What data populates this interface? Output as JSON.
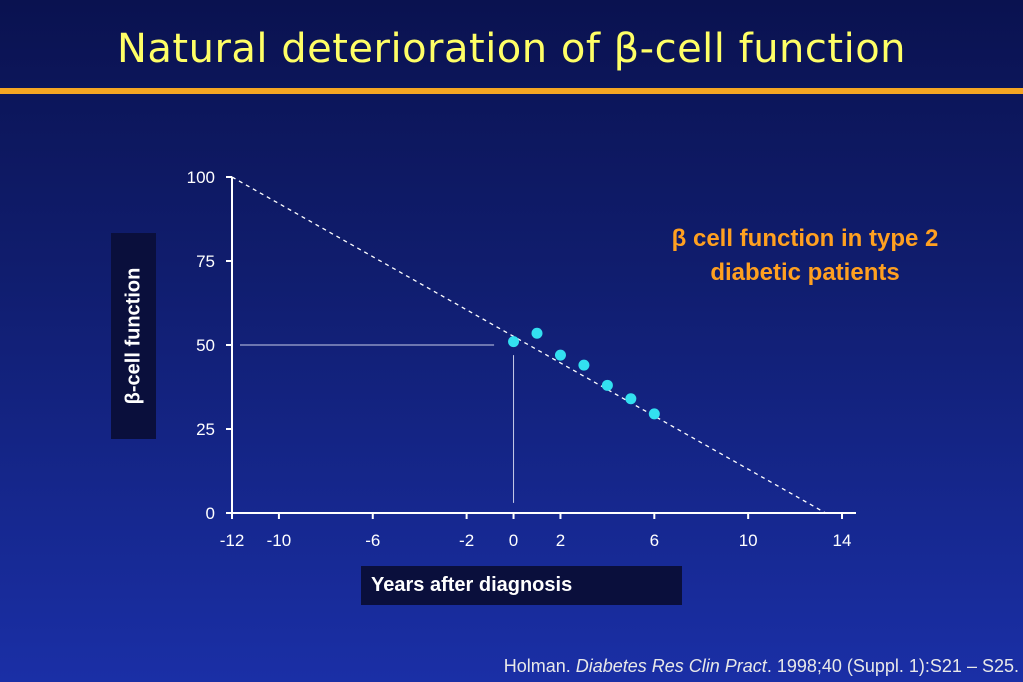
{
  "slide": {
    "title": "Natural deterioration of β-cell function",
    "annotation_line1": "β cell function in type 2",
    "annotation_line2": "diabetic patients",
    "citation_author": "Holman. ",
    "citation_journal": "Diabetes Res Clin Pract",
    "citation_rest": ". 1998;40 (Suppl. 1):S21 – S25."
  },
  "colors": {
    "title": "#ffff66",
    "rule": "#f5a623",
    "annotation": "#ffa020",
    "points": "#33e0f0",
    "axis": "#ffffff",
    "label_box": "#0a0f3c"
  },
  "chart_data": {
    "type": "scatter",
    "xlabel": "Years after diagnosis",
    "ylabel": "β-cell function",
    "xlim": [
      -12,
      14
    ],
    "ylim": [
      0,
      100
    ],
    "x_ticks": [
      -12,
      -10,
      -6,
      -2,
      0,
      2,
      6,
      10,
      14
    ],
    "y_ticks": [
      0,
      25,
      50,
      75,
      100
    ],
    "grid": false,
    "series": [
      {
        "x": [
          0,
          1,
          2,
          3,
          4,
          5,
          6
        ],
        "y": [
          51,
          53.5,
          47,
          44,
          38,
          34,
          29.5
        ]
      }
    ],
    "trend_line": {
      "x": [
        -12,
        13.3
      ],
      "y": [
        100,
        0
      ],
      "style": "dashed"
    },
    "reference_lines": [
      {
        "orientation": "horizontal",
        "y": 50,
        "x_from": -12,
        "x_to": -1
      },
      {
        "orientation": "vertical",
        "x": 0,
        "y_from": 3,
        "y_to": 47
      }
    ]
  }
}
